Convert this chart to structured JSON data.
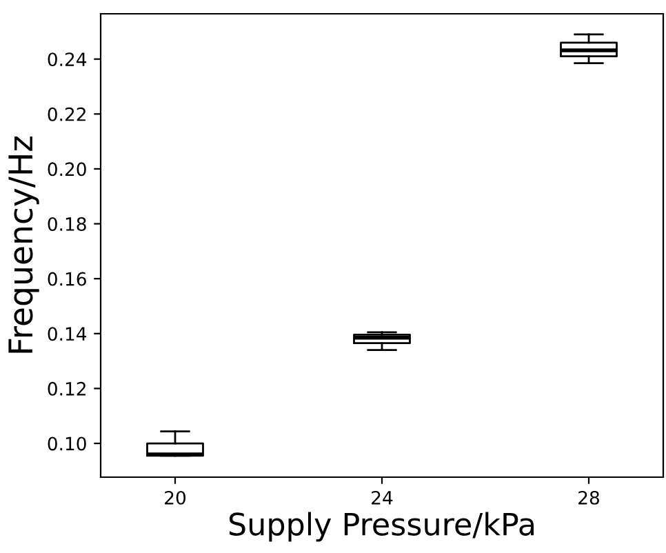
{
  "chart_data": {
    "type": "box",
    "xlabel": "Supply Pressure/kPa",
    "ylabel": "Frequency/Hz",
    "categories": [
      "20",
      "24",
      "28"
    ],
    "boxes": [
      {
        "low": 0.0955,
        "q1": 0.0955,
        "median": 0.096,
        "q3": 0.1,
        "high": 0.1044
      },
      {
        "low": 0.134,
        "q1": 0.1365,
        "median": 0.1385,
        "q3": 0.1396,
        "high": 0.1405
      },
      {
        "low": 0.2385,
        "q1": 0.241,
        "median": 0.2432,
        "q3": 0.246,
        "high": 0.249
      }
    ],
    "color": "#000000",
    "ylim": [
      0.0877,
      0.2565
    ],
    "yticks": [
      {
        "value": 0.1,
        "label": "0.10"
      },
      {
        "value": 0.12,
        "label": "0.12"
      },
      {
        "value": 0.14,
        "label": "0.14"
      },
      {
        "value": 0.16,
        "label": "0.16"
      },
      {
        "value": 0.18,
        "label": "0.18"
      },
      {
        "value": 0.2,
        "label": "0.20"
      },
      {
        "value": 0.22,
        "label": "0.22"
      },
      {
        "value": 0.24,
        "label": "0.24"
      }
    ],
    "grid": false
  }
}
